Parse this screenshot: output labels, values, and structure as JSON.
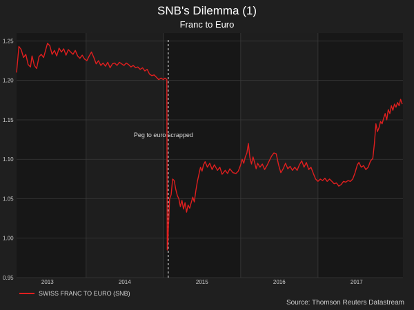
{
  "colors": {
    "background": "#1f1f1f",
    "plot_band_dark": "#171717",
    "plot_band_light": "#1e1e1e",
    "gridline": "#3a3a3a",
    "series": "#e01f1f",
    "annotation_line": "#ffffff"
  },
  "chart_data": {
    "type": "line",
    "title": "SNB's Dilemma (1)",
    "subtitle": "Franc to Euro",
    "xlabel": "",
    "ylabel": "",
    "ylim": [
      0.95,
      1.26
    ],
    "xlim": [
      2012.6,
      2017.6
    ],
    "yticks": [
      0.95,
      1.0,
      1.05,
      1.1,
      1.15,
      1.2,
      1.25
    ],
    "ytick_labels": [
      "0.95",
      "1.00",
      "1.05",
      "1.10",
      "1.15",
      "1.20",
      "1.25"
    ],
    "xtick_labels": [
      {
        "label": "2013",
        "x": 2013.0
      },
      {
        "label": "2014",
        "x": 2014.0
      },
      {
        "label": "2015",
        "x": 2015.0
      },
      {
        "label": "2016",
        "x": 2016.0
      },
      {
        "label": "2017",
        "x": 2017.0
      }
    ],
    "year_bands": [
      2012.6,
      2013.5,
      2014.5,
      2015.5,
      2016.5,
      2017.6
    ],
    "grid": true,
    "legend_position": "bottom-left",
    "series": [
      {
        "name": "SWISS FRANC TO EURO (SNB)",
        "points": [
          [
            2012.6,
            1.21
          ],
          [
            2012.63,
            1.243
          ],
          [
            2012.66,
            1.239
          ],
          [
            2012.69,
            1.229
          ],
          [
            2012.72,
            1.233
          ],
          [
            2012.75,
            1.22
          ],
          [
            2012.78,
            1.217
          ],
          [
            2012.8,
            1.231
          ],
          [
            2012.83,
            1.219
          ],
          [
            2012.86,
            1.215
          ],
          [
            2012.89,
            1.23
          ],
          [
            2012.92,
            1.233
          ],
          [
            2012.95,
            1.229
          ],
          [
            2012.98,
            1.24
          ],
          [
            2013.0,
            1.247
          ],
          [
            2013.03,
            1.244
          ],
          [
            2013.06,
            1.233
          ],
          [
            2013.09,
            1.238
          ],
          [
            2013.12,
            1.231
          ],
          [
            2013.15,
            1.241
          ],
          [
            2013.18,
            1.236
          ],
          [
            2013.21,
            1.24
          ],
          [
            2013.24,
            1.232
          ],
          [
            2013.27,
            1.239
          ],
          [
            2013.3,
            1.236
          ],
          [
            2013.33,
            1.233
          ],
          [
            2013.36,
            1.238
          ],
          [
            2013.39,
            1.231
          ],
          [
            2013.42,
            1.228
          ],
          [
            2013.45,
            1.232
          ],
          [
            2013.48,
            1.227
          ],
          [
            2013.51,
            1.225
          ],
          [
            2013.54,
            1.231
          ],
          [
            2013.57,
            1.236
          ],
          [
            2013.6,
            1.229
          ],
          [
            2013.63,
            1.221
          ],
          [
            2013.66,
            1.225
          ],
          [
            2013.69,
            1.219
          ],
          [
            2013.72,
            1.222
          ],
          [
            2013.75,
            1.218
          ],
          [
            2013.78,
            1.223
          ],
          [
            2013.81,
            1.216
          ],
          [
            2013.84,
            1.221
          ],
          [
            2013.87,
            1.222
          ],
          [
            2013.9,
            1.219
          ],
          [
            2013.93,
            1.223
          ],
          [
            2013.96,
            1.221
          ],
          [
            2013.99,
            1.219
          ],
          [
            2014.02,
            1.222
          ],
          [
            2014.05,
            1.22
          ],
          [
            2014.08,
            1.217
          ],
          [
            2014.11,
            1.219
          ],
          [
            2014.14,
            1.216
          ],
          [
            2014.17,
            1.217
          ],
          [
            2014.2,
            1.214
          ],
          [
            2014.23,
            1.216
          ],
          [
            2014.26,
            1.212
          ],
          [
            2014.29,
            1.214
          ],
          [
            2014.32,
            1.208
          ],
          [
            2014.35,
            1.206
          ],
          [
            2014.38,
            1.207
          ],
          [
            2014.41,
            1.204
          ],
          [
            2014.44,
            1.201
          ],
          [
            2014.47,
            1.203
          ],
          [
            2014.5,
            1.201
          ],
          [
            2014.52,
            1.203
          ],
          [
            2014.545,
            1.201
          ],
          [
            2014.55,
            0.985
          ],
          [
            2014.56,
            1.0
          ],
          [
            2014.58,
            1.05
          ],
          [
            2014.6,
            1.055
          ],
          [
            2014.62,
            1.075
          ],
          [
            2014.64,
            1.073
          ],
          [
            2014.66,
            1.062
          ],
          [
            2014.68,
            1.054
          ],
          [
            2014.7,
            1.05
          ],
          [
            2014.72,
            1.04
          ],
          [
            2014.74,
            1.048
          ],
          [
            2014.76,
            1.037
          ],
          [
            2014.78,
            1.045
          ],
          [
            2014.8,
            1.033
          ],
          [
            2014.82,
            1.042
          ],
          [
            2014.84,
            1.038
          ],
          [
            2014.86,
            1.045
          ],
          [
            2014.88,
            1.052
          ],
          [
            2014.9,
            1.046
          ],
          [
            2014.92,
            1.06
          ],
          [
            2014.94,
            1.072
          ],
          [
            2014.96,
            1.081
          ],
          [
            2014.98,
            1.09
          ],
          [
            2015.0,
            1.085
          ],
          [
            2015.02,
            1.093
          ],
          [
            2015.04,
            1.097
          ],
          [
            2015.07,
            1.09
          ],
          [
            2015.1,
            1.095
          ],
          [
            2015.13,
            1.087
          ],
          [
            2015.16,
            1.093
          ],
          [
            2015.2,
            1.086
          ],
          [
            2015.23,
            1.09
          ],
          [
            2015.26,
            1.081
          ],
          [
            2015.3,
            1.086
          ],
          [
            2015.33,
            1.082
          ],
          [
            2015.36,
            1.088
          ],
          [
            2015.4,
            1.083
          ],
          [
            2015.44,
            1.082
          ],
          [
            2015.47,
            1.085
          ],
          [
            2015.5,
            1.093
          ],
          [
            2015.52,
            1.1
          ],
          [
            2015.54,
            1.095
          ],
          [
            2015.56,
            1.103
          ],
          [
            2015.58,
            1.108
          ],
          [
            2015.6,
            1.12
          ],
          [
            2015.62,
            1.102
          ],
          [
            2015.64,
            1.094
          ],
          [
            2015.66,
            1.103
          ],
          [
            2015.68,
            1.096
          ],
          [
            2015.7,
            1.088
          ],
          [
            2015.72,
            1.095
          ],
          [
            2015.75,
            1.09
          ],
          [
            2015.78,
            1.094
          ],
          [
            2015.81,
            1.087
          ],
          [
            2015.84,
            1.092
          ],
          [
            2015.87,
            1.098
          ],
          [
            2015.9,
            1.104
          ],
          [
            2015.93,
            1.108
          ],
          [
            2015.96,
            1.107
          ],
          [
            2015.99,
            1.093
          ],
          [
            2016.02,
            1.083
          ],
          [
            2016.05,
            1.088
          ],
          [
            2016.08,
            1.095
          ],
          [
            2016.11,
            1.088
          ],
          [
            2016.14,
            1.091
          ],
          [
            2016.17,
            1.086
          ],
          [
            2016.2,
            1.09
          ],
          [
            2016.23,
            1.086
          ],
          [
            2016.26,
            1.093
          ],
          [
            2016.29,
            1.098
          ],
          [
            2016.32,
            1.09
          ],
          [
            2016.35,
            1.096
          ],
          [
            2016.38,
            1.087
          ],
          [
            2016.41,
            1.09
          ],
          [
            2016.44,
            1.082
          ],
          [
            2016.47,
            1.075
          ],
          [
            2016.5,
            1.072
          ],
          [
            2016.53,
            1.075
          ],
          [
            2016.56,
            1.073
          ],
          [
            2016.59,
            1.076
          ],
          [
            2016.62,
            1.072
          ],
          [
            2016.65,
            1.075
          ],
          [
            2016.68,
            1.072
          ],
          [
            2016.71,
            1.069
          ],
          [
            2016.74,
            1.07
          ],
          [
            2016.77,
            1.066
          ],
          [
            2016.8,
            1.068
          ],
          [
            2016.83,
            1.072
          ],
          [
            2016.86,
            1.071
          ],
          [
            2016.89,
            1.073
          ],
          [
            2016.92,
            1.072
          ],
          [
            2016.95,
            1.075
          ],
          [
            2016.98,
            1.083
          ],
          [
            2017.01,
            1.093
          ],
          [
            2017.03,
            1.096
          ],
          [
            2017.06,
            1.09
          ],
          [
            2017.09,
            1.092
          ],
          [
            2017.12,
            1.087
          ],
          [
            2017.15,
            1.09
          ],
          [
            2017.18,
            1.098
          ],
          [
            2017.21,
            1.101
          ],
          [
            2017.23,
            1.12
          ],
          [
            2017.25,
            1.145
          ],
          [
            2017.27,
            1.135
          ],
          [
            2017.29,
            1.14
          ],
          [
            2017.31,
            1.148
          ],
          [
            2017.33,
            1.145
          ],
          [
            2017.35,
            1.152
          ],
          [
            2017.37,
            1.158
          ],
          [
            2017.39,
            1.15
          ],
          [
            2017.41,
            1.163
          ],
          [
            2017.43,
            1.158
          ],
          [
            2017.45,
            1.168
          ],
          [
            2017.47,
            1.162
          ],
          [
            2017.49,
            1.17
          ],
          [
            2017.51,
            1.166
          ],
          [
            2017.53,
            1.172
          ],
          [
            2017.55,
            1.168
          ],
          [
            2017.57,
            1.176
          ],
          [
            2017.59,
            1.17
          ]
        ]
      }
    ],
    "annotations": [
      {
        "text": "Peg to euro scrapped",
        "x": 2014.545,
        "y": 1.13,
        "type": "vertical-dashed-line"
      }
    ]
  },
  "legend": {
    "label": "SWISS FRANC TO EURO (SNB)"
  },
  "source": "Source: Thomson Reuters Datastream"
}
